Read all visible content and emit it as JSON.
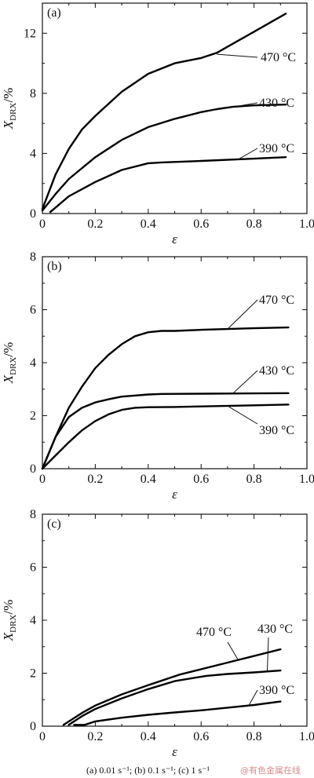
{
  "caption": "(a) 0.01 s⁻¹; (b) 0.1 s⁻¹; (c) 1 s⁻¹",
  "watermark": "@有色金属在线",
  "chart_data": [
    {
      "type": "line",
      "panel_label": "(a)",
      "xlabel": "ε",
      "ylabel_main": "X",
      "ylabel_sub": "DRX",
      "ylabel_unit": "/%",
      "xlim": [
        0,
        1.0
      ],
      "ylim": [
        0,
        14
      ],
      "xticks": [
        0,
        0.2,
        0.4,
        0.6,
        0.8,
        1.0
      ],
      "xtick_labels": [
        "0",
        "0.2",
        "0.4",
        "0.6",
        "0.8",
        "1.0"
      ],
      "yticks": [
        0,
        4,
        8,
        12
      ],
      "ytick_labels": [
        "0",
        "4",
        "8",
        "12"
      ],
      "series": [
        {
          "name": "470 °C",
          "x": [
            0.0,
            0.05,
            0.1,
            0.15,
            0.2,
            0.3,
            0.4,
            0.5,
            0.6,
            0.66,
            0.72,
            0.8,
            0.86,
            0.92
          ],
          "y": [
            0.3,
            2.6,
            4.3,
            5.6,
            6.5,
            8.1,
            9.3,
            10.0,
            10.35,
            10.7,
            11.3,
            12.1,
            12.7,
            13.3
          ]
        },
        {
          "name": "430 °C",
          "x": [
            0.0,
            0.05,
            0.1,
            0.2,
            0.3,
            0.4,
            0.5,
            0.6,
            0.66,
            0.72,
            0.8,
            0.92
          ],
          "y": [
            0.2,
            1.3,
            2.3,
            3.75,
            4.9,
            5.75,
            6.3,
            6.75,
            6.95,
            7.1,
            7.2,
            7.25
          ]
        },
        {
          "name": "390 °C",
          "x": [
            0.03,
            0.1,
            0.2,
            0.3,
            0.4,
            0.45,
            0.6,
            0.8,
            0.92
          ],
          "y": [
            0.1,
            1.15,
            2.1,
            2.9,
            3.35,
            3.4,
            3.5,
            3.65,
            3.75
          ]
        }
      ],
      "labels": [
        {
          "series": "470 °C",
          "anchor_x": 0.66,
          "anchor_y": 10.6
        },
        {
          "series": "430 °C",
          "anchor_x": 0.62,
          "anchor_y": 6.8
        },
        {
          "series": "390 °C",
          "anchor_x": 0.74,
          "anchor_y": 3.6
        }
      ]
    },
    {
      "type": "line",
      "panel_label": "(b)",
      "xlabel": "ε",
      "ylabel_main": "X",
      "ylabel_sub": "DRX",
      "ylabel_unit": "/%",
      "xlim": [
        0,
        1.0
      ],
      "ylim": [
        0,
        8
      ],
      "xticks": [
        0,
        0.2,
        0.4,
        0.6,
        0.8,
        1.0
      ],
      "xtick_labels": [
        "0",
        "0.2",
        "0.4",
        "0.6",
        "0.8",
        "1.0"
      ],
      "yticks": [
        0,
        2,
        4,
        6,
        8
      ],
      "ytick_labels": [
        "0",
        "2",
        "4",
        "6",
        "8"
      ],
      "series": [
        {
          "name": "470 °C",
          "x": [
            0.0,
            0.05,
            0.1,
            0.15,
            0.2,
            0.25,
            0.3,
            0.35,
            0.4,
            0.45,
            0.5,
            0.6,
            0.7,
            0.8,
            0.93
          ],
          "y": [
            0.0,
            1.2,
            2.3,
            3.1,
            3.8,
            4.3,
            4.7,
            5.0,
            5.15,
            5.2,
            5.2,
            5.24,
            5.27,
            5.3,
            5.33
          ]
        },
        {
          "name": "430 °C",
          "x": [
            0.0,
            0.05,
            0.1,
            0.15,
            0.2,
            0.25,
            0.3,
            0.4,
            0.45,
            0.6,
            0.8,
            0.93
          ],
          "y": [
            0.0,
            1.2,
            1.95,
            2.3,
            2.5,
            2.62,
            2.72,
            2.8,
            2.82,
            2.83,
            2.84,
            2.85
          ]
        },
        {
          "name": "390 °C",
          "x": [
            0.0,
            0.05,
            0.1,
            0.15,
            0.2,
            0.25,
            0.3,
            0.35,
            0.4,
            0.5,
            0.6,
            0.8,
            0.93
          ],
          "y": [
            0.0,
            0.5,
            1.0,
            1.45,
            1.8,
            2.05,
            2.22,
            2.3,
            2.32,
            2.33,
            2.35,
            2.39,
            2.42
          ]
        }
      ],
      "labels": [
        {
          "series": "470 °C",
          "anchor_x": 0.7,
          "anchor_y": 5.27
        },
        {
          "series": "430 °C",
          "anchor_x": 0.72,
          "anchor_y": 2.84
        },
        {
          "series": "390 °C",
          "anchor_x": 0.7,
          "anchor_y": 2.37
        }
      ]
    },
    {
      "type": "line",
      "panel_label": "(c)",
      "xlabel": "ε",
      "ylabel_main": "X",
      "ylabel_sub": "DRX",
      "ylabel_unit": "/%",
      "xlim": [
        0,
        1.0
      ],
      "ylim": [
        0,
        8
      ],
      "xticks": [
        0,
        0.2,
        0.4,
        0.6,
        0.8,
        1.0
      ],
      "xtick_labels": [
        "0",
        "0.2",
        "0.4",
        "0.6",
        "0.8",
        "1.0"
      ],
      "yticks": [
        0,
        2,
        4,
        6,
        8
      ],
      "ytick_labels": [
        "0",
        "2",
        "4",
        "6",
        "8"
      ],
      "series": [
        {
          "name": "470 °C",
          "x": [
            0.08,
            0.15,
            0.2,
            0.3,
            0.4,
            0.52,
            0.6,
            0.7,
            0.8,
            0.9
          ],
          "y": [
            0.05,
            0.5,
            0.78,
            1.2,
            1.55,
            1.95,
            2.15,
            2.4,
            2.65,
            2.9
          ]
        },
        {
          "name": "430 °C",
          "x": [
            0.1,
            0.15,
            0.2,
            0.3,
            0.4,
            0.5,
            0.62,
            0.7,
            0.8,
            0.9
          ],
          "y": [
            0.05,
            0.38,
            0.65,
            1.05,
            1.4,
            1.7,
            1.9,
            1.97,
            2.03,
            2.1
          ]
        },
        {
          "name": "390 °C",
          "x": [
            0.12,
            0.16,
            0.2,
            0.3,
            0.4,
            0.5,
            0.6,
            0.7,
            0.8,
            0.9
          ],
          "y": [
            0.05,
            0.05,
            0.18,
            0.32,
            0.43,
            0.52,
            0.6,
            0.7,
            0.8,
            0.93
          ]
        }
      ],
      "labels": [
        {
          "series": "470 °C",
          "anchor_x": 0.74,
          "anchor_y": 2.5
        },
        {
          "series": "430 °C",
          "anchor_x": 0.85,
          "anchor_y": 2.07
        },
        {
          "series": "390 °C",
          "anchor_x": 0.78,
          "anchor_y": 0.78
        }
      ]
    }
  ]
}
